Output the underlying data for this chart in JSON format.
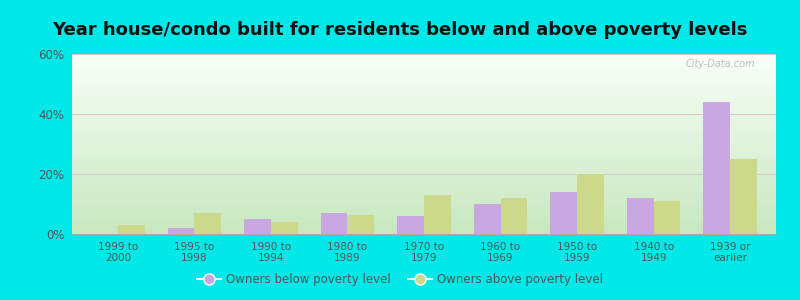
{
  "title": "Year house/condo built for residents below and above poverty levels",
  "categories": [
    "1999 to\n2000",
    "1995 to\n1998",
    "1990 to\n1994",
    "1980 to\n1989",
    "1970 to\n1979",
    "1960 to\n1969",
    "1950 to\n1959",
    "1940 to\n1949",
    "1939 or\nearlier"
  ],
  "below_poverty": [
    0.0,
    2.0,
    5.0,
    7.0,
    6.0,
    10.0,
    14.0,
    12.0,
    44.0
  ],
  "above_poverty": [
    3.0,
    7.0,
    4.0,
    6.5,
    13.0,
    12.0,
    20.0,
    11.0,
    25.0
  ],
  "below_color": "#c9a8e0",
  "above_color": "#ccd98a",
  "outer_bg": "#00e8e8",
  "ylim": [
    0,
    60
  ],
  "yticks": [
    0,
    20,
    40,
    60
  ],
  "ytick_labels": [
    "0%",
    "20%",
    "40%",
    "60%"
  ],
  "grid_color": "#ddc8c8",
  "title_fontsize": 13,
  "tick_color": "#555555",
  "legend_below_label": "Owners below poverty level",
  "legend_above_label": "Owners above poverty level"
}
